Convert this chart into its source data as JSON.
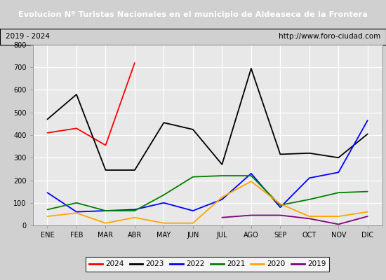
{
  "title": "Evolucion Nº Turistas Nacionales en el municipio de Aldeaseca de la Frontera",
  "subtitle_left": "2019 - 2024",
  "subtitle_right": "http://www.foro-ciudad.com",
  "months": [
    "ENE",
    "FEB",
    "MAR",
    "ABR",
    "MAY",
    "JUN",
    "JUL",
    "AGO",
    "SEP",
    "OCT",
    "NOV",
    "DIC"
  ],
  "series": {
    "2024": [
      410,
      430,
      355,
      720,
      null,
      null,
      null,
      null,
      null,
      null,
      null,
      null
    ],
    "2023": [
      470,
      580,
      245,
      245,
      455,
      425,
      270,
      695,
      315,
      320,
      300,
      405
    ],
    "2022": [
      145,
      60,
      65,
      70,
      100,
      65,
      115,
      230,
      80,
      210,
      235,
      465
    ],
    "2021": [
      70,
      100,
      65,
      65,
      135,
      215,
      220,
      220,
      90,
      115,
      145,
      150
    ],
    "2020": [
      40,
      55,
      10,
      35,
      10,
      10,
      125,
      195,
      95,
      40,
      40,
      60
    ],
    "2019": [
      null,
      null,
      null,
      null,
      null,
      null,
      35,
      45,
      45,
      30,
      5,
      40
    ]
  },
  "colors": {
    "2024": "#ff0000",
    "2023": "#000000",
    "2022": "#0000ff",
    "2021": "#008000",
    "2020": "#ffa500",
    "2019": "#800080"
  },
  "ylim": [
    0,
    800
  ],
  "yticks": [
    0,
    100,
    200,
    300,
    400,
    500,
    600,
    700,
    800
  ],
  "title_bg": "#4169b0",
  "title_color": "#ffffff",
  "subtitle_bg": "#f0f0f0",
  "plot_bg": "#e8e8e8",
  "grid_color": "#ffffff",
  "fig_bg": "#d0d0d0"
}
